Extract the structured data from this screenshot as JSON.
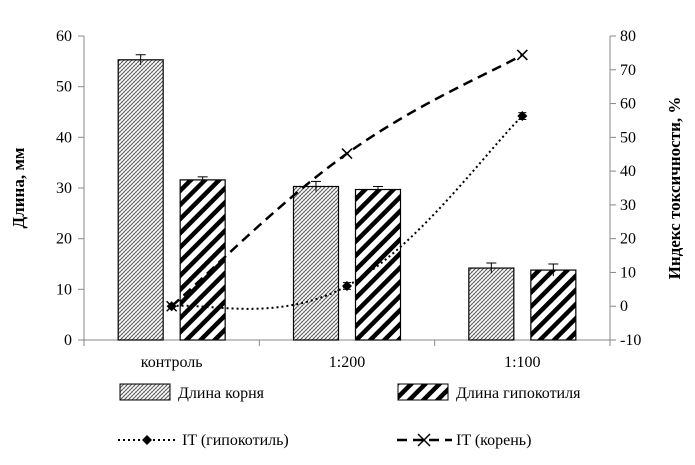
{
  "chart_data": {
    "type": "bar",
    "categories": [
      "контроль",
      "1:200",
      "1:100"
    ],
    "bar_series": [
      {
        "name": "Длина корня",
        "values": [
          55.3,
          30.3,
          14.2
        ],
        "errors": [
          1.0,
          1.0,
          1.0
        ],
        "pattern": "crosshatch"
      },
      {
        "name": "Длина гипокотиля",
        "values": [
          31.6,
          29.7,
          13.8
        ],
        "errors": [
          0.6,
          0.6,
          1.2
        ],
        "pattern": "diagonal"
      }
    ],
    "line_series": [
      {
        "name": "IT (гипокотиль)",
        "axis": "right",
        "x": [
          0,
          1,
          2
        ],
        "values": [
          0,
          6,
          56.3
        ],
        "errors": [
          0,
          1.0,
          1.0
        ],
        "style": "dotted",
        "marker": "diamond"
      },
      {
        "name": "IT (корень)",
        "axis": "right",
        "x": [
          0,
          1,
          2
        ],
        "values": [
          0,
          45.2,
          74.4
        ],
        "errors": [
          0,
          0,
          0
        ],
        "style": "dashed",
        "marker": "x"
      }
    ],
    "y_left": {
      "label": "Длина, мм",
      "ylim": [
        0,
        60
      ],
      "ticks": [
        "0",
        "10",
        "20",
        "30",
        "40",
        "50",
        "60"
      ]
    },
    "y_right": {
      "label": "Индекс токсичности, %",
      "ylim": [
        -10,
        80
      ],
      "ticks": [
        "-10",
        "0",
        "10",
        "20",
        "30",
        "40",
        "50",
        "60",
        "70",
        "80"
      ]
    },
    "xlabel": "",
    "grid": false,
    "legend": {
      "placement": "bottom",
      "items": [
        "Длина корня",
        "Длина гипокотиля",
        "IT (гипокотиль)",
        "IT (корень)"
      ]
    }
  }
}
